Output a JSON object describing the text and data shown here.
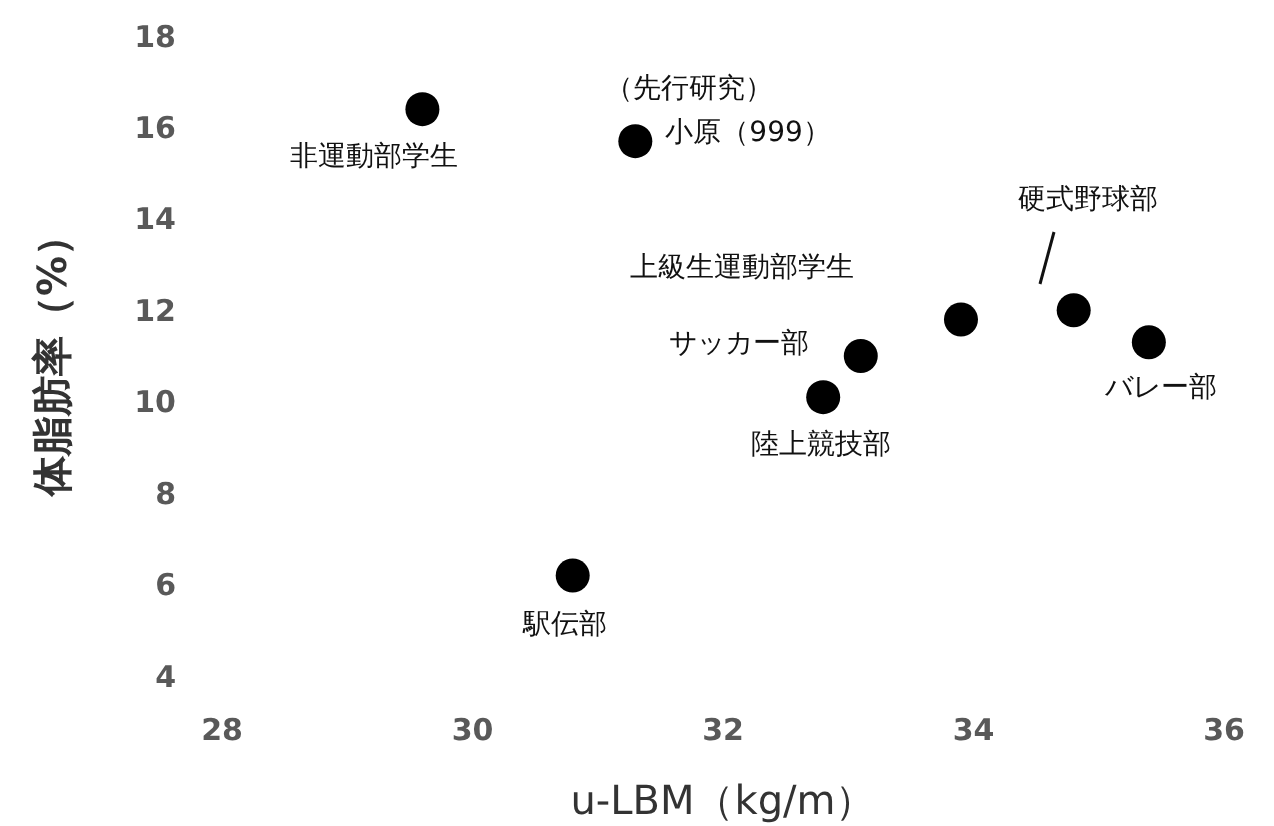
{
  "chart_data": {
    "type": "scatter",
    "xlabel": "u-LBM（kg/m）",
    "ylabel": "体脂肪率（%）",
    "x": [
      29.6,
      31.3,
      33.9,
      34.8,
      35.4,
      33.1,
      32.8,
      30.8
    ],
    "values": [
      16.4,
      15.7,
      11.8,
      12.0,
      11.3,
      11.0,
      10.1,
      6.2
    ],
    "color": "#000000",
    "marker": "circle",
    "grid": false,
    "legend": false,
    "xlim": [
      28,
      36
    ],
    "xticks": [
      28,
      30,
      32,
      34,
      36
    ],
    "ylim": [
      4,
      18
    ],
    "yticks": [
      4,
      6,
      8,
      10,
      12,
      14,
      16,
      18
    ],
    "annotations": [
      {
        "text": "非運動部学生",
        "x": 29.6,
        "y": 16.4
      },
      {
        "text": "（先行研究）",
        "x": 31.3,
        "y": 15.7
      },
      {
        "text": "小原（999）",
        "x": 31.3,
        "y": 15.7
      },
      "上級生運動部学生",
      "硬式野球部",
      {
        "text": "サッカー部",
        "x": 33.1,
        "y": 11.0
      },
      {
        "text": "陸上競技部",
        "x": 32.8,
        "y": 10.1
      },
      {
        "text": "バレー部",
        "x": 35.4,
        "y": 11.3
      },
      {
        "text": "駅伝部",
        "x": 30.8,
        "y": 6.2
      }
    ]
  }
}
